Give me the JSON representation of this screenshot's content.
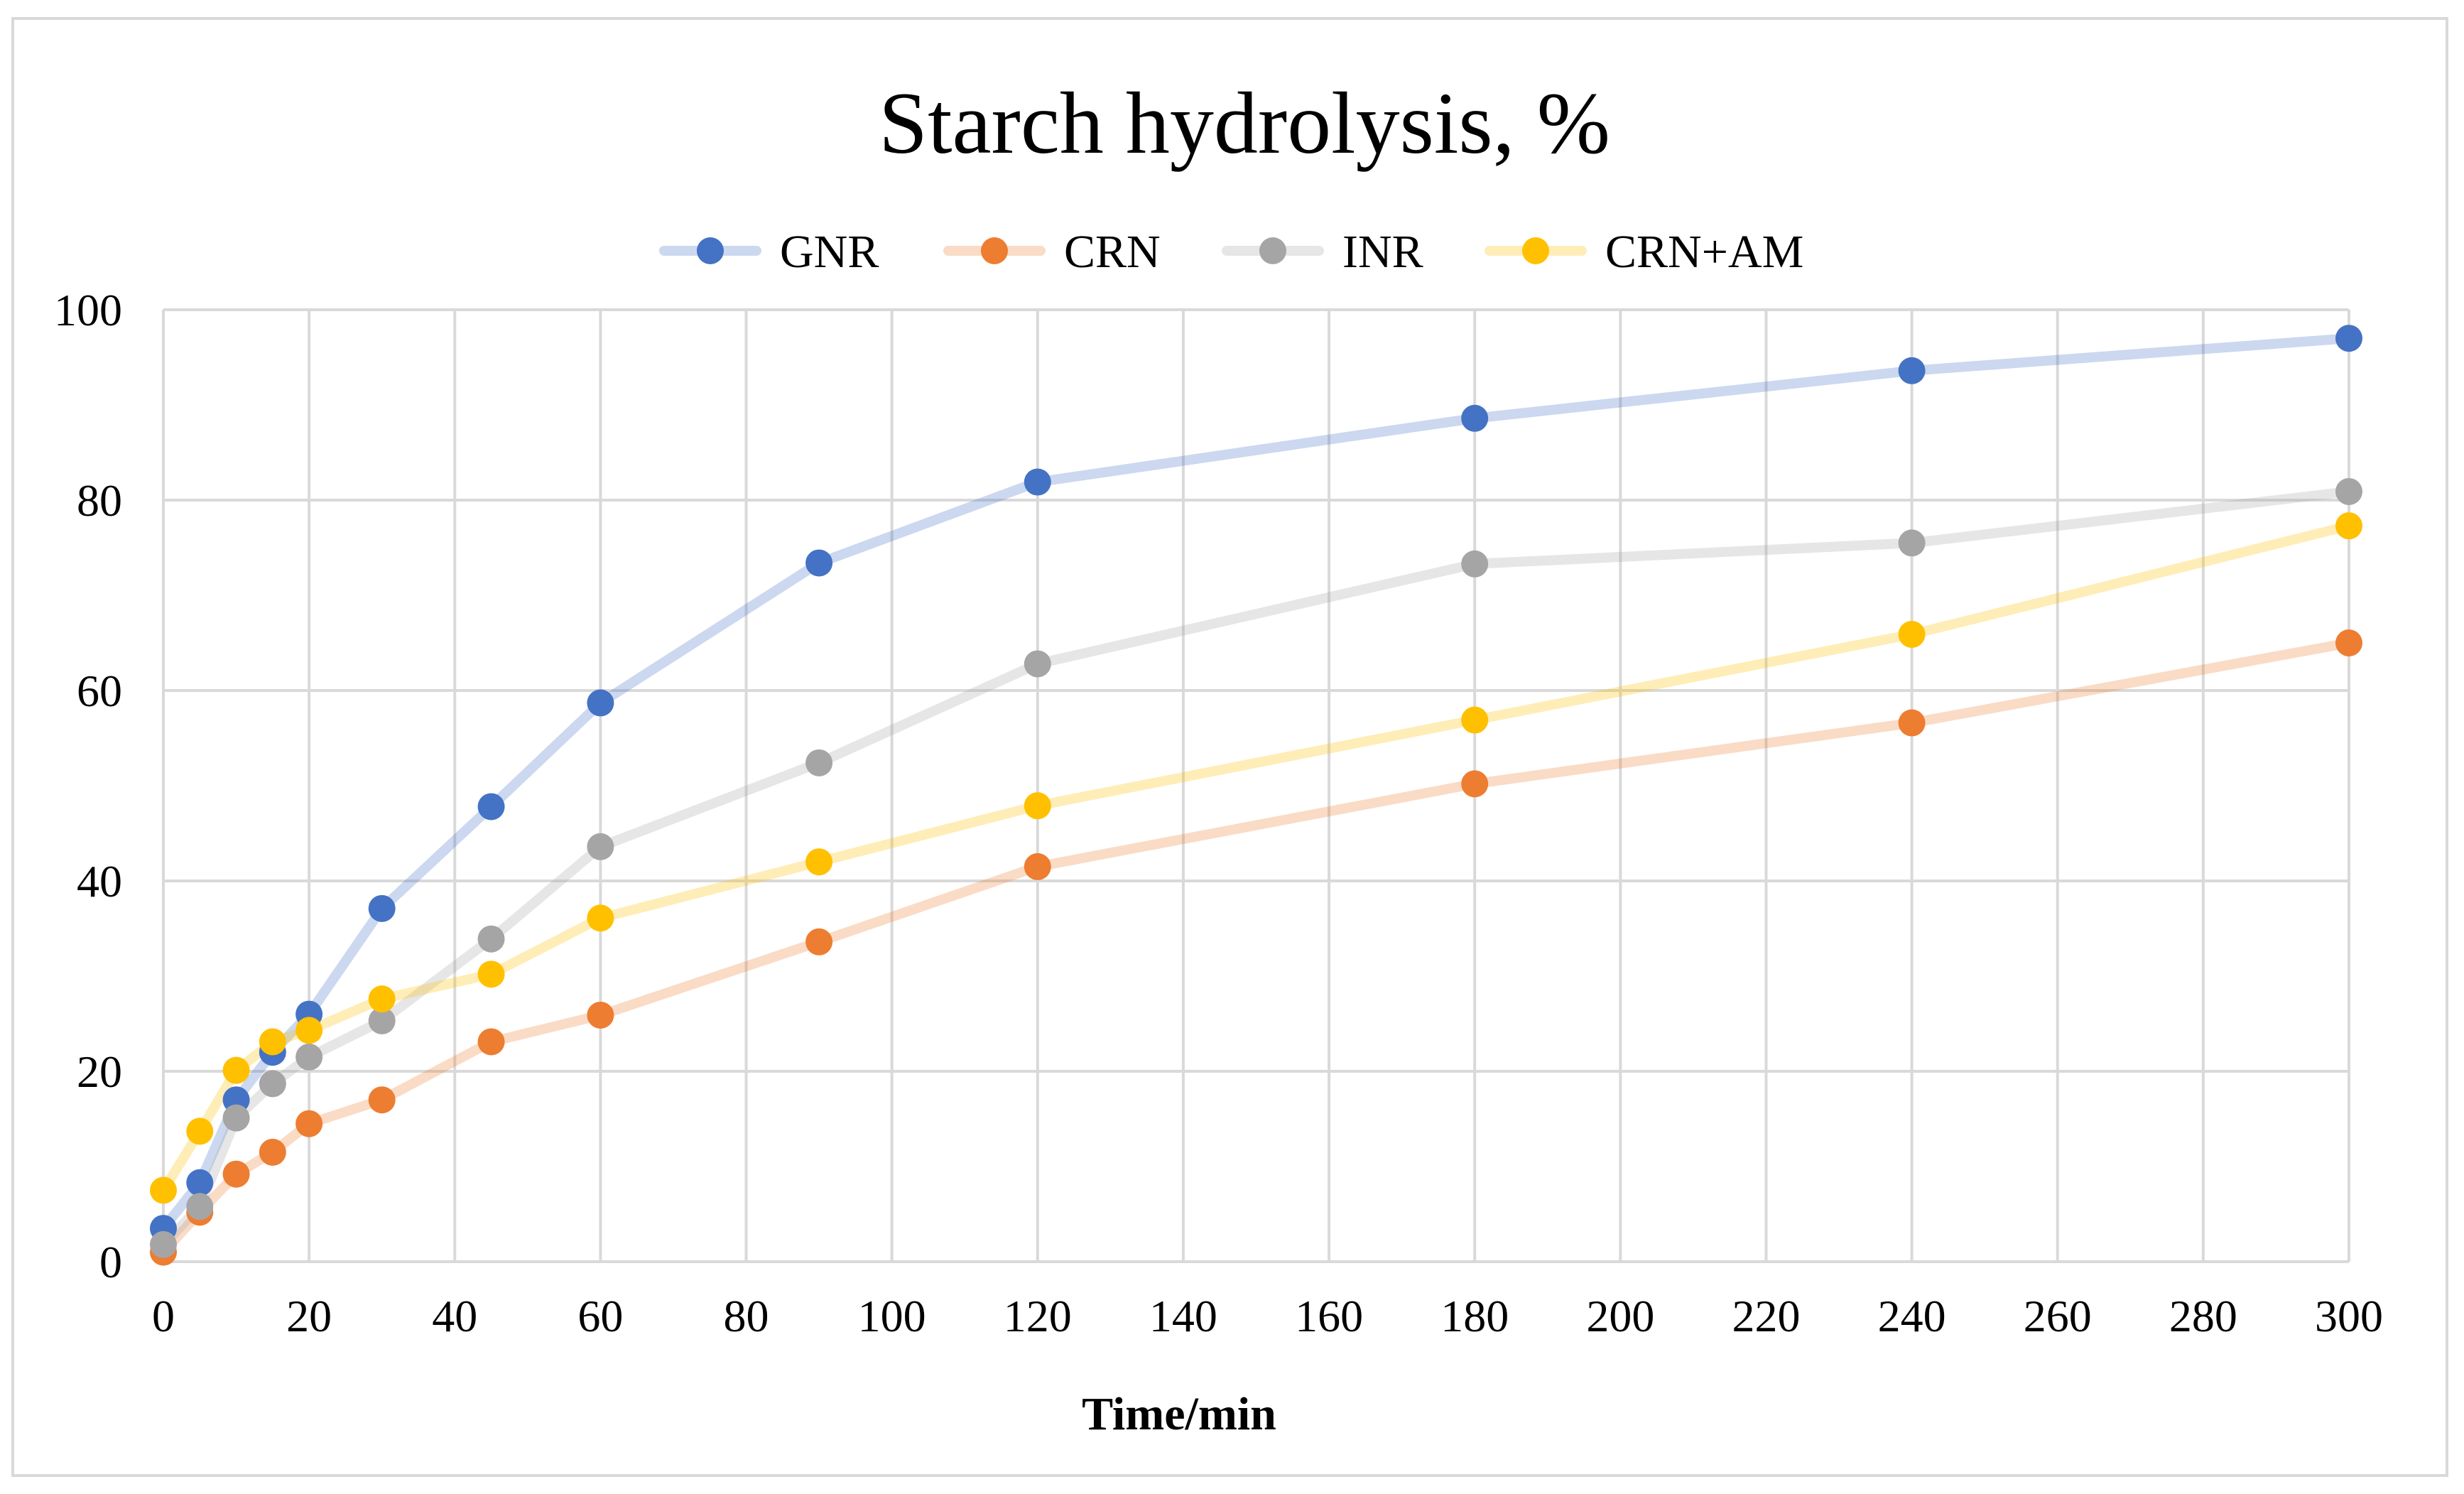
{
  "chart_data": {
    "type": "line",
    "title": "Starch hydrolysis, %",
    "xlabel": "Time/min",
    "ylabel": "",
    "x": [
      0,
      5,
      10,
      15,
      20,
      30,
      45,
      60,
      90,
      120,
      180,
      240,
      300
    ],
    "xlim": [
      0,
      300
    ],
    "ylim": [
      0,
      100
    ],
    "xticks": [
      "0",
      "20",
      "40",
      "60",
      "80",
      "100",
      "120",
      "140",
      "160",
      "180",
      "200",
      "220",
      "240",
      "260",
      "280",
      "300"
    ],
    "yticks": [
      "0",
      "20",
      "40",
      "60",
      "80",
      "100"
    ],
    "grid": true,
    "legend_position": "top",
    "series": [
      {
        "name": "GNR",
        "color": "#4472c4",
        "values": [
          3.5,
          8.3,
          17.0,
          22.0,
          26.0,
          37.1,
          47.8,
          58.7,
          73.4,
          81.9,
          88.6,
          93.6,
          97.0
        ]
      },
      {
        "name": "CRN",
        "color": "#ed7d31",
        "values": [
          1.0,
          5.2,
          9.2,
          11.5,
          14.5,
          17.0,
          23.1,
          25.9,
          33.6,
          41.5,
          50.2,
          56.6,
          65.0
        ]
      },
      {
        "name": "INR",
        "color": "#a5a5a5",
        "values": [
          1.8,
          5.8,
          15.1,
          18.7,
          21.5,
          25.3,
          33.9,
          43.6,
          52.4,
          62.8,
          73.3,
          75.5,
          80.9
        ]
      },
      {
        "name": "CRN+AM",
        "color": "#ffc000",
        "values": [
          7.5,
          13.7,
          20.1,
          23.1,
          24.3,
          27.6,
          30.2,
          36.1,
          42.0,
          47.9,
          56.9,
          65.9,
          77.3
        ]
      }
    ]
  }
}
